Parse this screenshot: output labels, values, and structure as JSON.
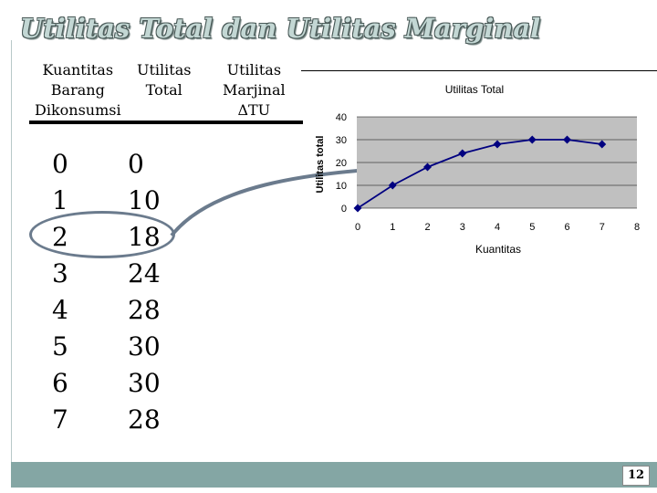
{
  "slide": {
    "title": "Utilitas Total dan Utilitas Marginal",
    "page_number": "12"
  },
  "table": {
    "headers": {
      "quantity": [
        "Kuantitas",
        "Barang",
        "Dikonsumsi"
      ],
      "total": [
        "Utilitas",
        "Total"
      ],
      "marginal": [
        "Utilitas",
        "Marjinal",
        "ΔTU"
      ]
    },
    "quantities": [
      "0",
      "1",
      "2",
      "3",
      "4",
      "5",
      "6",
      "7"
    ],
    "totals": [
      "0",
      "10",
      "18",
      "24",
      "28",
      "30",
      "30",
      "28"
    ]
  },
  "colors": {
    "title_fill": "#c3d7d4",
    "footer": "#84a6a4",
    "plot_bg": "#c0c0c0",
    "series": "#000080",
    "callout": "#6b7b8d"
  },
  "chart_data": {
    "type": "line",
    "title": "Utilitas Total",
    "xlabel": "Kuantitas",
    "ylabel": "Utilitas total",
    "x": [
      0,
      1,
      2,
      3,
      4,
      5,
      6,
      7
    ],
    "y": [
      0,
      10,
      18,
      24,
      28,
      30,
      30,
      28
    ],
    "xticks": [
      "0",
      "1",
      "2",
      "3",
      "4",
      "5",
      "6",
      "7",
      "8"
    ],
    "yticks": [
      "0",
      "10",
      "20",
      "30",
      "40"
    ],
    "xlim": [
      0,
      8
    ],
    "ylim": [
      0,
      40
    ],
    "grid": true,
    "legend": "none"
  }
}
